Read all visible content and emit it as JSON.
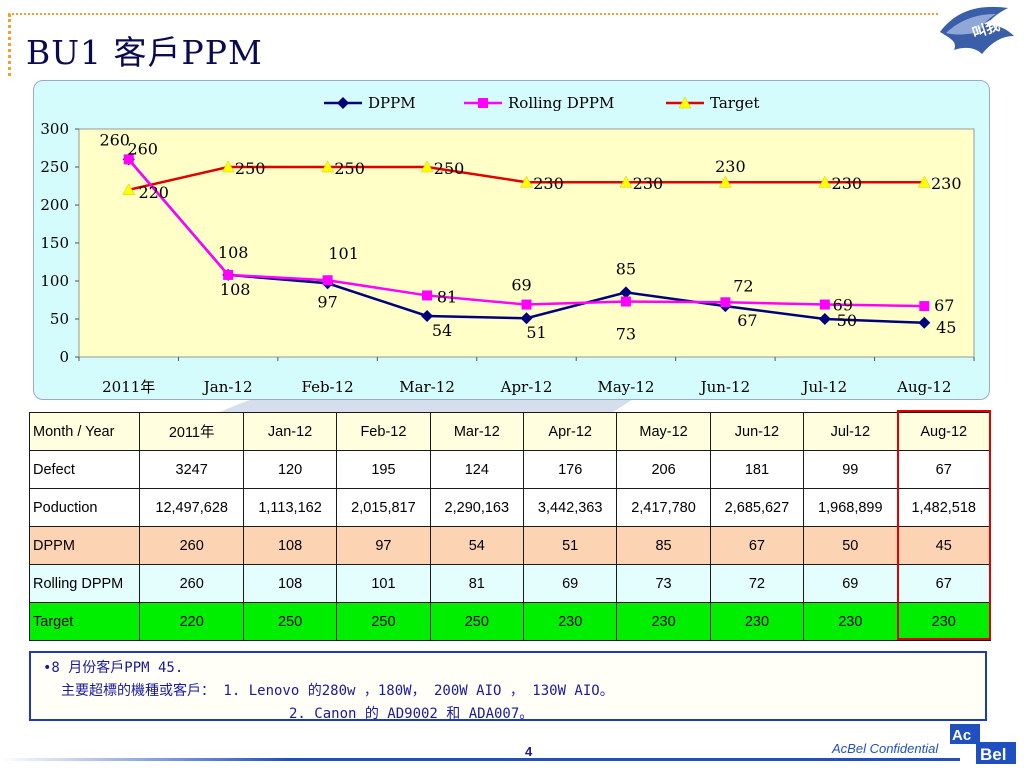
{
  "slide": {
    "title": "BU1  客戶PPM",
    "page_number": "4",
    "confidential": "AcBel Confidential",
    "logo_text": "叫我老鷹",
    "brand": {
      "part1": "Ac",
      "part2": "Bel"
    }
  },
  "chart_data": {
    "type": "line",
    "categories": [
      "2011年",
      "Jan-12",
      "Feb-12",
      "Mar-12",
      "Apr-12",
      "May-12",
      "Jun-12",
      "Jul-12",
      "Aug-12"
    ],
    "ylim": [
      0,
      300
    ],
    "yticks": [
      0,
      50,
      100,
      150,
      200,
      250,
      300
    ],
    "legend_position": "top",
    "series": [
      {
        "name": "DPPM",
        "values": [
          260,
          108,
          97,
          54,
          51,
          85,
          67,
          50,
          45
        ],
        "color": "#00007a",
        "marker": "diamond",
        "labels": [
          "",
          "108",
          "97",
          "54",
          "51",
          "85",
          "67",
          "50",
          "45"
        ]
      },
      {
        "name": "Rolling DPPM",
        "values": [
          260,
          108,
          101,
          81,
          69,
          73,
          72,
          69,
          67
        ],
        "color": "#ff00ff",
        "marker": "square",
        "labels": [
          "260",
          "108",
          "101",
          "81",
          "69",
          "73",
          "72",
          "69",
          "67"
        ]
      },
      {
        "name": "Target",
        "values": [
          220,
          250,
          250,
          250,
          230,
          230,
          230,
          230,
          230
        ],
        "color": "#e00000",
        "marker": "triangle",
        "labels": [
          "220",
          "250",
          "250",
          "250",
          "230",
          "230",
          "230",
          "230",
          "230"
        ]
      }
    ],
    "point_label_top": "260"
  },
  "table": {
    "header": [
      "Month / Year",
      "2011年",
      "Jan-12",
      "Feb-12",
      "Mar-12",
      "Apr-12",
      "May-12",
      "Jun-12",
      "Jul-12",
      "Aug-12"
    ],
    "rows": [
      {
        "label": "Defect",
        "values": [
          "3247",
          "120",
          "195",
          "124",
          "176",
          "206",
          "181",
          "99",
          "67"
        ]
      },
      {
        "label": "Poduction",
        "values": [
          "12,497,628",
          "1,113,162",
          "2,015,817",
          "2,290,163",
          "3,442,363",
          "2,417,780",
          "2,685,627",
          "1,968,899",
          "1,482,518"
        ]
      },
      {
        "label": "DPPM",
        "values": [
          "260",
          "108",
          "97",
          "54",
          "51",
          "85",
          "67",
          "50",
          "45"
        ]
      },
      {
        "label": "Rolling DPPM",
        "values": [
          "260",
          "108",
          "101",
          "81",
          "69",
          "73",
          "72",
          "69",
          "67"
        ]
      },
      {
        "label": "Target",
        "values": [
          "220",
          "250",
          "250",
          "250",
          "230",
          "230",
          "230",
          "230",
          "230"
        ]
      }
    ]
  },
  "notes": {
    "line1": "•8 月份客戶PPM 45.",
    "line2": "主要超標的機種或客戶： 1.  Lenovo 的280w ，180W， 200W AIO ， 130W AIO。",
    "line3": "2.  Canon 的 AD9002 和 ADA007。"
  }
}
